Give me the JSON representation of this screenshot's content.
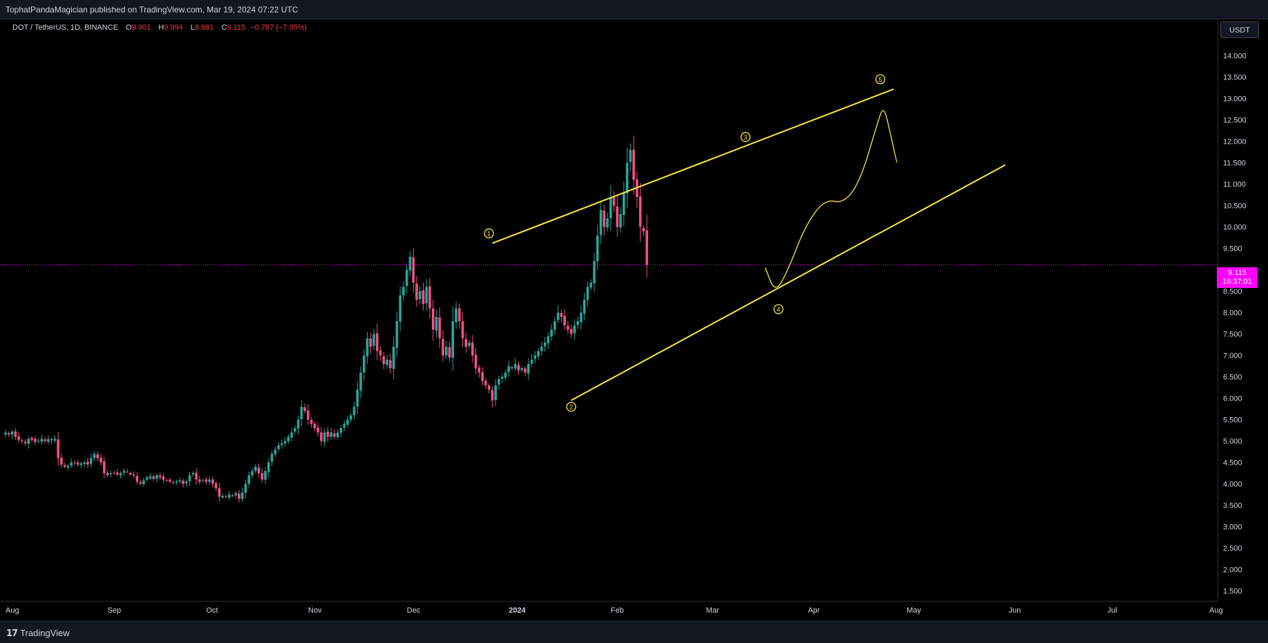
{
  "header": {
    "publisher_text": "TophatPandaMagician published on TradingView.com, Mar 19, 2024 07:22 UTC"
  },
  "legend": {
    "symbol": "DOT / TetherUS, 1D, BINANCE",
    "open_label": "O",
    "open": "9.901",
    "high_label": "H",
    "high": "9.994",
    "low_label": "L",
    "low": "8.881",
    "close_label": "C",
    "close": "9.115",
    "change": "−0.787 (−7.95%)"
  },
  "price_scale": {
    "currency": "USDT",
    "last_price": "9.115",
    "countdown": "16:37:01"
  },
  "footer": {
    "brand": "TradingView",
    "logo_mark": "17"
  },
  "colors": {
    "up": "#26a69a",
    "down": "#ef5383",
    "drawing": "#ffeb3b",
    "last_price_line": "#ff00ff"
  },
  "chart_data": {
    "type": "candlestick",
    "symbol": "DOT/USDT",
    "interval": "1D",
    "ylim": [
      1.25,
      14.85
    ],
    "y_ticks": [
      1.5,
      2.0,
      2.5,
      3.0,
      3.5,
      4.0,
      4.5,
      5.0,
      5.5,
      6.0,
      6.5,
      7.0,
      7.5,
      8.0,
      8.5,
      9.0,
      9.5,
      10.0,
      10.5,
      11.0,
      11.5,
      12.0,
      12.5,
      13.0,
      13.5,
      14.0,
      14.5
    ],
    "y_tick_labels": [
      "1.500",
      "2.000",
      "2.500",
      "3.000",
      "3.500",
      "4.000",
      "4.500",
      "5.000",
      "5.500",
      "6.000",
      "6.500",
      "7.000",
      "7.500",
      "8.000",
      "8.500",
      "9.000",
      "9.500",
      "10.000",
      "10.500",
      "11.000",
      "11.500",
      "12.000",
      "12.500",
      "13.000",
      "13.500",
      "14.000",
      "14.500"
    ],
    "x_range": [
      "2023-08-01",
      "2024-08-01"
    ],
    "x_ticks": [
      {
        "date": "2023-08-01",
        "label": "Aug"
      },
      {
        "date": "2023-09-01",
        "label": "Sep"
      },
      {
        "date": "2023-10-01",
        "label": "Oct"
      },
      {
        "date": "2023-11-01",
        "label": "Nov"
      },
      {
        "date": "2023-12-01",
        "label": "Dec"
      },
      {
        "date": "2024-01-01",
        "label": "2024"
      },
      {
        "date": "2024-02-01",
        "label": "Feb"
      },
      {
        "date": "2024-03-01",
        "label": "Mar"
      },
      {
        "date": "2024-04-01",
        "label": "Apr"
      },
      {
        "date": "2024-05-01",
        "label": "May"
      },
      {
        "date": "2024-06-01",
        "label": "Jun"
      },
      {
        "date": "2024-07-01",
        "label": "Jul"
      },
      {
        "date": "2024-08-01",
        "label": "Aug"
      }
    ],
    "start_date": "2023-08-01",
    "closes": [
      5.2,
      5.15,
      5.22,
      5.1,
      5.02,
      5.0,
      4.95,
      5.05,
      5.03,
      4.98,
      5.0,
      5.05,
      5.0,
      5.05,
      5.02,
      5.05,
      4.6,
      4.45,
      4.4,
      4.42,
      4.5,
      4.48,
      4.45,
      4.48,
      4.5,
      4.45,
      4.6,
      4.7,
      4.6,
      4.5,
      4.25,
      4.2,
      4.25,
      4.25,
      4.22,
      4.25,
      4.3,
      4.28,
      4.22,
      4.2,
      4.05,
      4.0,
      4.08,
      4.15,
      4.18,
      4.12,
      4.2,
      4.15,
      4.1,
      4.08,
      4.05,
      4.02,
      4.05,
      4.08,
      4.0,
      4.05,
      4.2,
      4.25,
      4.1,
      4.05,
      4.08,
      4.05,
      4.1,
      4.0,
      3.9,
      3.7,
      3.72,
      3.7,
      3.75,
      3.72,
      3.78,
      3.65,
      3.8,
      4.0,
      4.2,
      4.3,
      4.4,
      4.25,
      4.1,
      4.3,
      4.5,
      4.7,
      4.8,
      4.9,
      4.95,
      5.0,
      5.1,
      5.2,
      5.3,
      5.5,
      5.8,
      5.7,
      5.5,
      5.4,
      5.3,
      5.2,
      5.0,
      5.2,
      5.1,
      5.2,
      5.1,
      5.2,
      5.3,
      5.4,
      5.5,
      5.6,
      5.8,
      6.2,
      6.6,
      7.0,
      7.4,
      7.2,
      7.5,
      7.1,
      7.0,
      6.8,
      6.9,
      6.7,
      7.2,
      7.8,
      8.4,
      8.6,
      9.0,
      9.3,
      8.7,
      8.3,
      8.5,
      8.2,
      8.6,
      8.1,
      7.6,
      7.9,
      7.4,
      7.0,
      7.2,
      6.95,
      7.8,
      8.1,
      7.8,
      7.4,
      7.2,
      7.3,
      7.0,
      6.7,
      6.6,
      6.4,
      6.3,
      6.2,
      5.95,
      6.3,
      6.45,
      6.5,
      6.6,
      6.75,
      6.7,
      6.8,
      6.65,
      6.7,
      6.6,
      6.8,
      6.9,
      7.0,
      7.1,
      7.2,
      7.3,
      7.45,
      7.6,
      7.8,
      8.0,
      7.9,
      7.7,
      7.6,
      7.5,
      7.7,
      7.8,
      8.0,
      8.3,
      8.6,
      8.7,
      9.2,
      9.8,
      10.4,
      10.0,
      10.2,
      10.7,
      10.5,
      10.0,
      10.3,
      10.8,
      11.5,
      11.8,
      11.1,
      10.7,
      10.0,
      9.9,
      9.115
    ],
    "drawings": {
      "upper_trendline": [
        [
          "2023-12-27",
          9.62
        ],
        [
          "2024-04-27",
          13.22
        ]
      ],
      "lower_trendline": [
        [
          "2024-01-20",
          5.95
        ],
        [
          "2024-05-31",
          11.45
        ]
      ],
      "projection_path": [
        [
          "2024-03-19",
          9.05
        ],
        [
          "2024-03-22",
          8.45
        ],
        [
          "2024-03-26",
          9.0
        ],
        [
          "2024-03-31",
          10.0
        ],
        [
          "2024-04-06",
          10.65
        ],
        [
          "2024-04-12",
          10.55
        ],
        [
          "2024-04-17",
          11.1
        ],
        [
          "2024-04-22",
          12.4
        ],
        [
          "2024-04-24",
          12.85
        ],
        [
          "2024-04-26",
          12.2
        ],
        [
          "2024-04-28",
          11.5
        ]
      ],
      "wave_labels": [
        {
          "label": "1",
          "date": "2023-12-26",
          "price": 9.85
        },
        {
          "label": "2",
          "date": "2024-01-20",
          "price": 5.8
        },
        {
          "label": "3",
          "date": "2024-03-13",
          "price": 12.1
        },
        {
          "label": "4",
          "date": "2024-03-23",
          "price": 8.08
        },
        {
          "label": "5",
          "date": "2024-04-23",
          "price": 13.45
        }
      ]
    }
  }
}
